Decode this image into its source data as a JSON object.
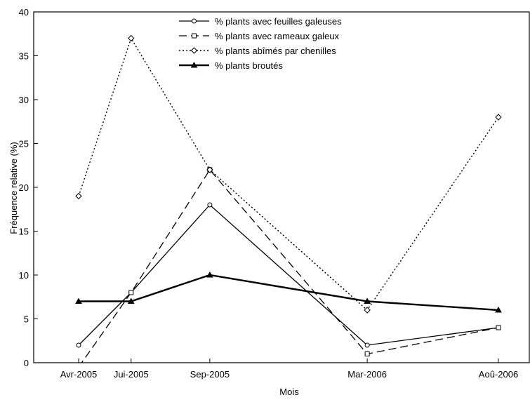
{
  "chart_data": {
    "type": "line",
    "title": "",
    "xlabel": "Mois",
    "ylabel": "Fréquence relative (%)",
    "ylim": [
      0,
      40
    ],
    "yticks": [
      "0",
      "5",
      "10",
      "15",
      "20",
      "25",
      "30",
      "35",
      "40"
    ],
    "categories": [
      "Avr-2005",
      "Jui-2005",
      "Sep-2005",
      "Mar-2006",
      "Aoû-2006"
    ],
    "x_months": [
      0,
      2,
      5,
      11,
      16
    ],
    "grid": false,
    "legend_position": "top-center",
    "series": [
      {
        "name": "% plants avec feuilles galeuses",
        "values": [
          2,
          8,
          18,
          2,
          4
        ],
        "line": "solid",
        "marker": "circle"
      },
      {
        "name": "% plants avec rameaux galeux",
        "values": [
          -0.5,
          8,
          22,
          1,
          4
        ],
        "line": "dashed",
        "marker": "square"
      },
      {
        "name": "% plants abîmés par chenilles",
        "values": [
          19,
          37,
          22,
          6,
          28
        ],
        "line": "dotted",
        "marker": "diamond"
      },
      {
        "name": "% plants broutés",
        "values": [
          7,
          7,
          10,
          7,
          6
        ],
        "line": "solid-bold",
        "marker": "triangle"
      }
    ]
  }
}
